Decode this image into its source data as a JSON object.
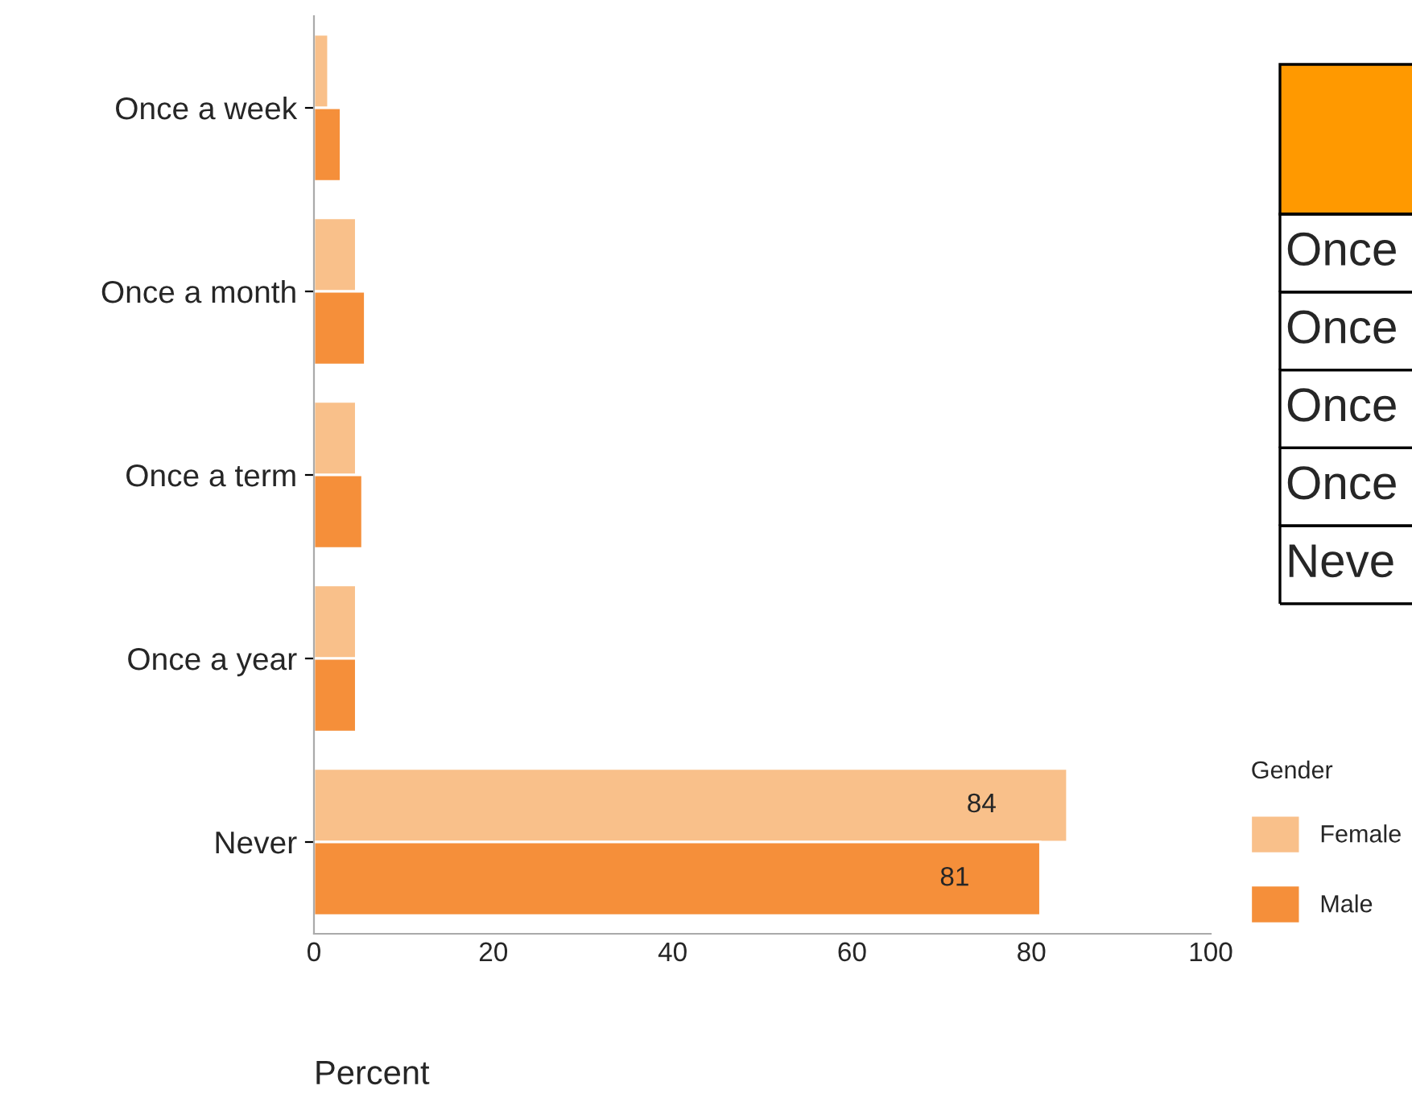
{
  "chart_data": {
    "type": "bar",
    "orientation": "horizontal",
    "xlabel": "Percent",
    "legend_title": "Gender",
    "legend": "right",
    "categories": [
      "Once a week",
      "Once a month",
      "Once a term",
      "Once a year",
      "Never"
    ],
    "series": [
      {
        "name": "Female",
        "color": "#f9c08a",
        "values": [
          1.6,
          4.7,
          4.7,
          4.7,
          84
        ],
        "value_labels": [
          null,
          null,
          null,
          null,
          "84"
        ]
      },
      {
        "name": "Male",
        "color": "#f58f3a",
        "values": [
          3.0,
          5.7,
          5.4,
          4.7,
          81
        ],
        "value_labels": [
          null,
          null,
          null,
          null,
          "81"
        ]
      }
    ],
    "xlim": [
      0,
      100
    ],
    "xticks": [
      0,
      20,
      40,
      60,
      80,
      100
    ],
    "grid": false,
    "annotations": [
      "Once",
      "Once",
      "Once",
      "Once",
      "Neve"
    ]
  }
}
